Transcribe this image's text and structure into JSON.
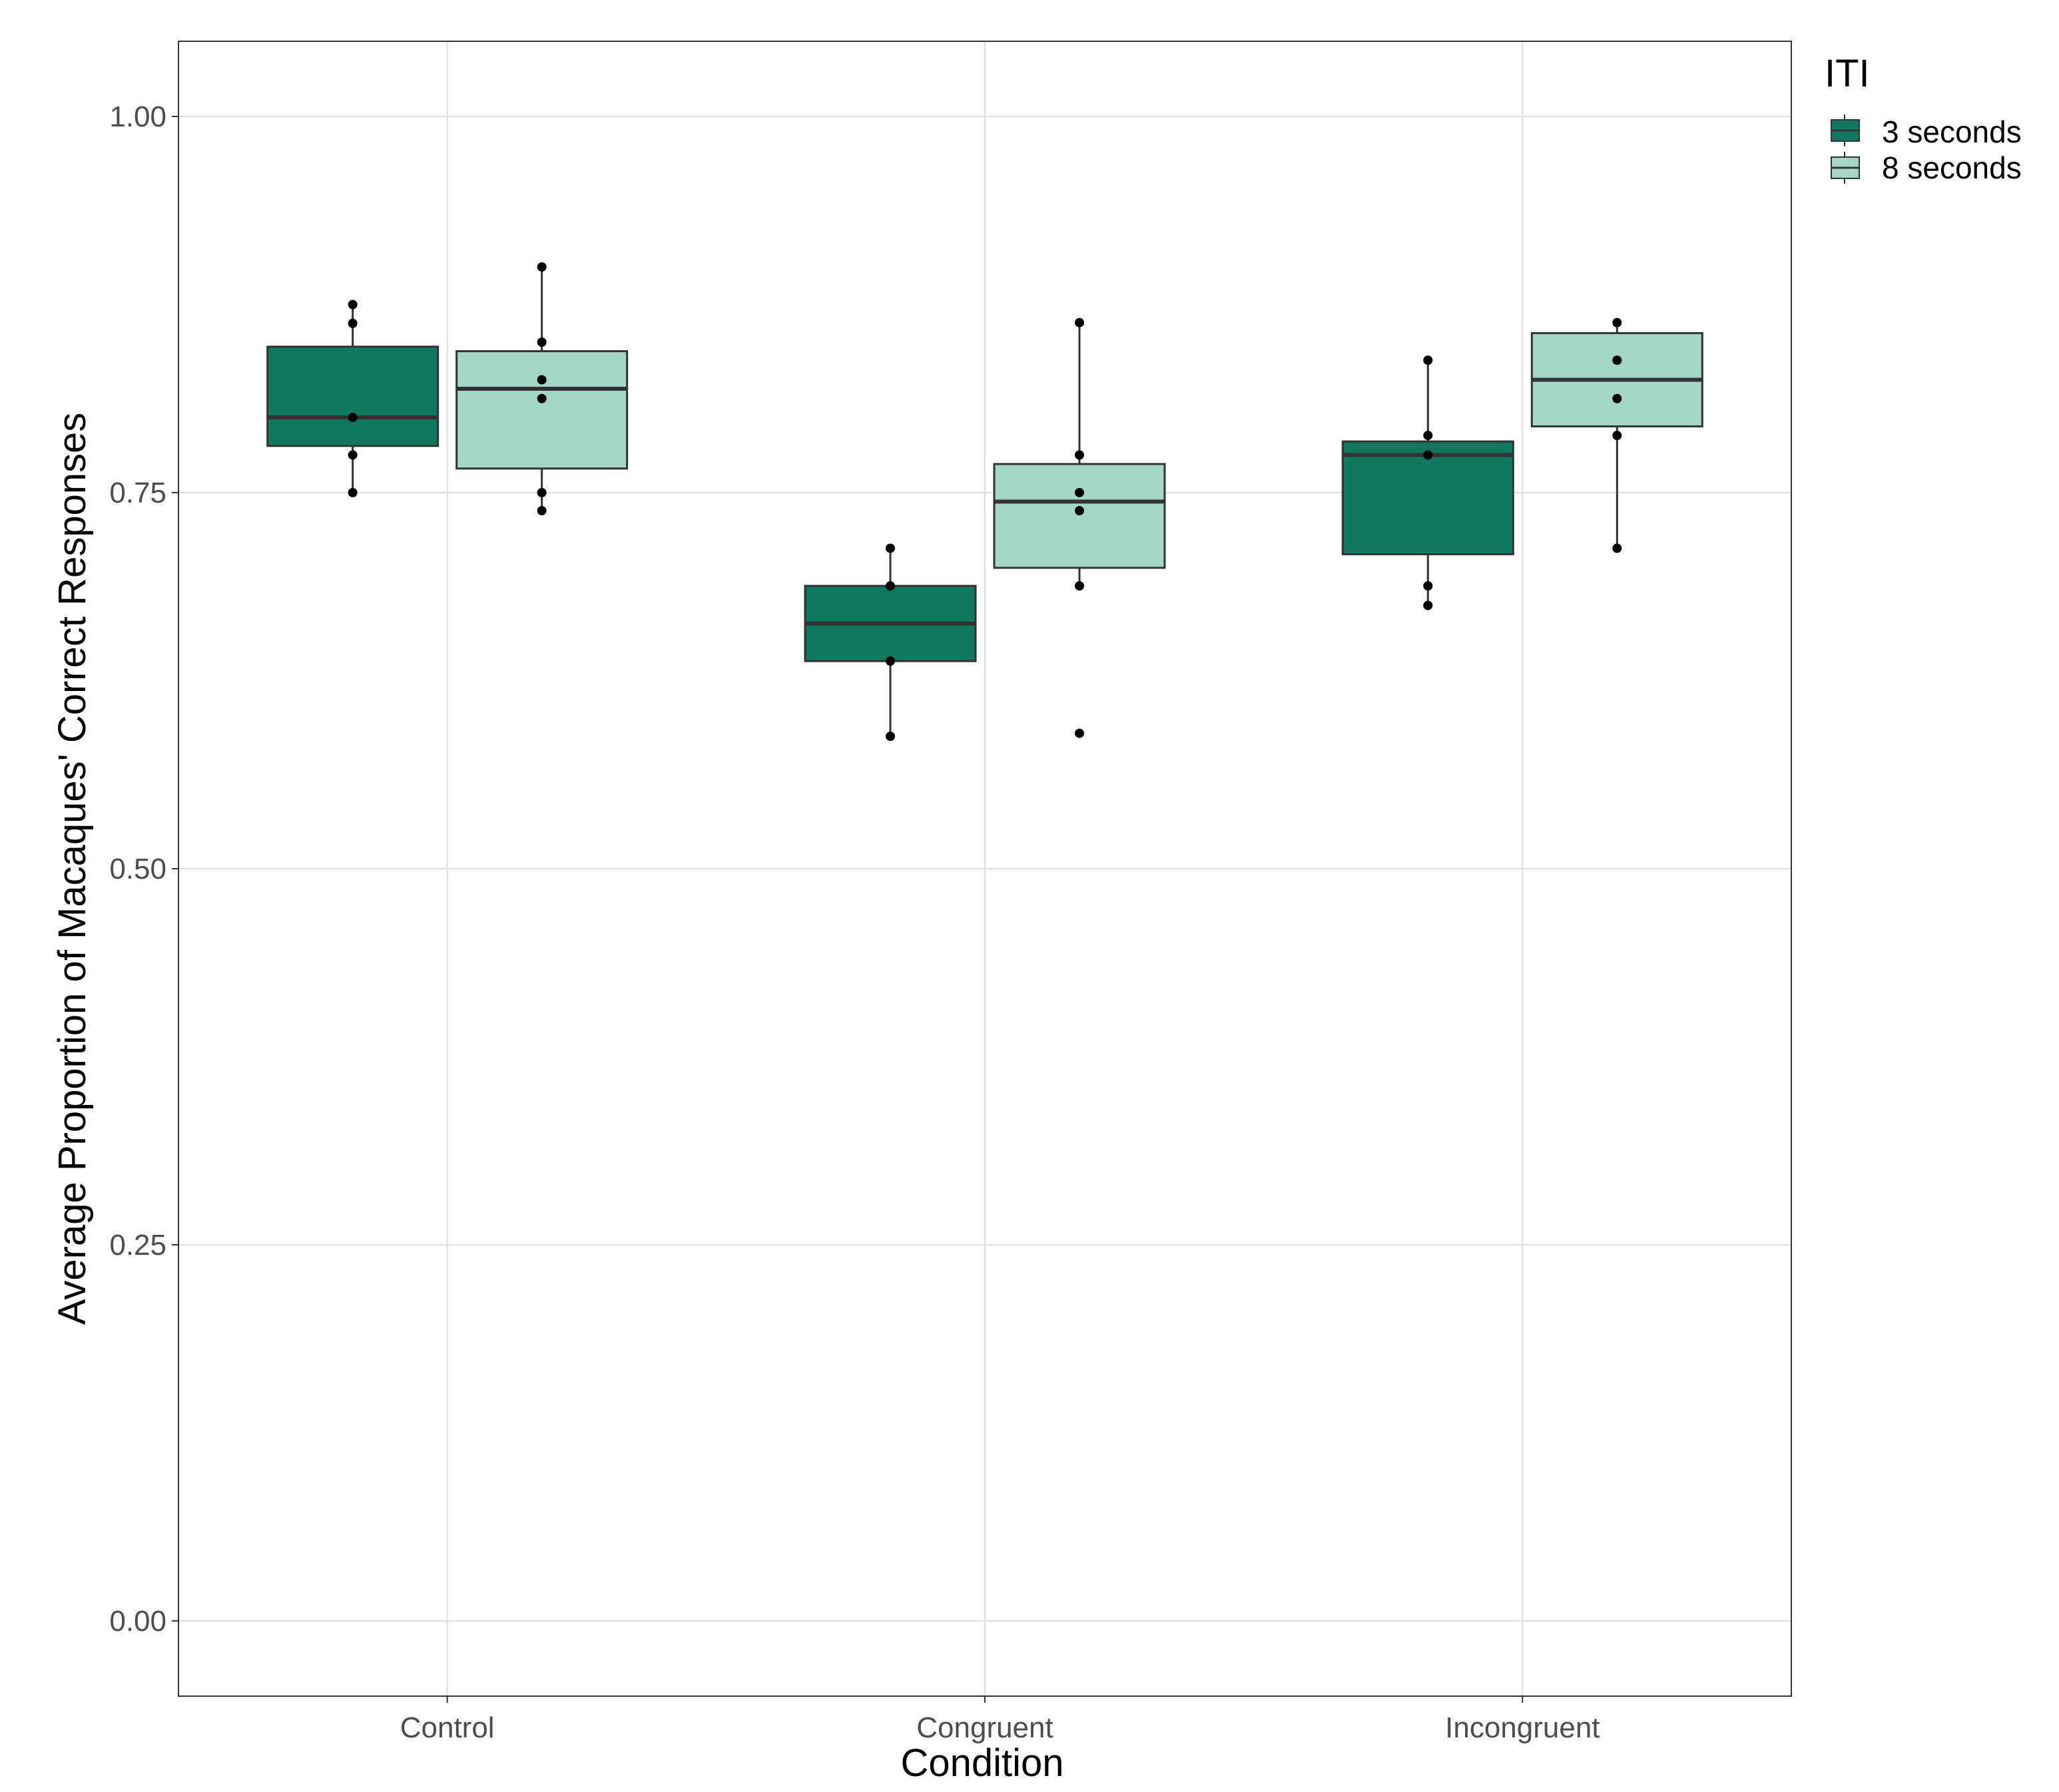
{
  "chart_data": {
    "type": "boxplot",
    "title": "",
    "xlabel": "Condition",
    "ylabel": "Average Proportion of Macaques' Correct Responses",
    "ylim": [
      -0.05,
      1.05
    ],
    "yticks": [
      0.0,
      0.25,
      0.5,
      0.75,
      1.0
    ],
    "ytick_labels": [
      "0.00",
      "0.25",
      "0.50",
      "0.75",
      "1.00"
    ],
    "categories": [
      "Control",
      "Congruent",
      "Incongruent"
    ],
    "grid": true,
    "legend": {
      "title": "ITI",
      "position": "right",
      "entries": [
        "3 seconds",
        "8 seconds"
      ]
    },
    "series": [
      {
        "name": "3 seconds",
        "color": "#117860",
        "boxes": [
          {
            "category": "Control",
            "q1": 0.781,
            "median": 0.8,
            "q3": 0.847,
            "whisker_low": 0.75,
            "whisker_high": 0.875,
            "points": [
              0.875,
              0.8625,
              0.8,
              0.775,
              0.75
            ]
          },
          {
            "category": "Congruent",
            "q1": 0.638,
            "median": 0.663,
            "q3": 0.688,
            "whisker_low": 0.588,
            "whisker_high": 0.713,
            "points": [
              0.713,
              0.688,
              0.638,
              0.588
            ]
          },
          {
            "category": "Incongruent",
            "q1": 0.709,
            "median": 0.775,
            "q3": 0.784,
            "whisker_low": 0.675,
            "whisker_high": 0.838,
            "points": [
              0.838,
              0.788,
              0.775,
              0.688,
              0.675
            ]
          }
        ]
      },
      {
        "name": "8 seconds",
        "color": "#a3d6c7",
        "boxes": [
          {
            "category": "Control",
            "q1": 0.766,
            "median": 0.819,
            "q3": 0.844,
            "whisker_low": 0.738,
            "whisker_high": 0.9,
            "points": [
              0.9,
              0.85,
              0.825,
              0.8125,
              0.75,
              0.738
            ]
          },
          {
            "category": "Congruent",
            "q1": 0.7,
            "median": 0.744,
            "q3": 0.769,
            "whisker_low": 0.688,
            "whisker_high": 0.863,
            "points": [
              0.863,
              0.775,
              0.75,
              0.738,
              0.688,
              0.59
            ]
          },
          {
            "category": "Incongruent",
            "q1": 0.794,
            "median": 0.825,
            "q3": 0.856,
            "whisker_low": 0.713,
            "whisker_high": 0.863,
            "points": [
              0.863,
              0.838,
              0.8125,
              0.788,
              0.713
            ]
          }
        ]
      }
    ]
  }
}
